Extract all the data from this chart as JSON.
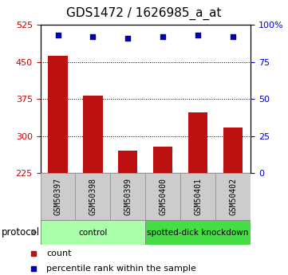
{
  "title": "GDS1472 / 1626985_a_at",
  "samples": [
    "GSM50397",
    "GSM50398",
    "GSM50399",
    "GSM50400",
    "GSM50401",
    "GSM50402"
  ],
  "counts": [
    462,
    382,
    270,
    278,
    348,
    318
  ],
  "percentile_ranks": [
    93,
    92,
    91,
    92,
    93,
    92
  ],
  "ylim_left": [
    225,
    525
  ],
  "ylim_right": [
    0,
    100
  ],
  "yticks_left": [
    225,
    300,
    375,
    450,
    525
  ],
  "yticks_right": [
    0,
    25,
    50,
    75,
    100
  ],
  "ytick_right_labels": [
    "0",
    "25",
    "50",
    "75",
    "100%"
  ],
  "bar_color": "#bb1111",
  "dot_color": "#0000bb",
  "bar_bottom": 225,
  "groups": [
    {
      "label": "control",
      "start": 0,
      "end": 3,
      "color": "#aaffaa"
    },
    {
      "label": "spotted-dick knockdown",
      "start": 3,
      "end": 6,
      "color": "#44dd44"
    }
  ],
  "legend_items": [
    {
      "label": "count",
      "color": "#bb1111"
    },
    {
      "label": "percentile rank within the sample",
      "color": "#0000bb"
    }
  ],
  "protocol_label": "protocol",
  "tick_label_color_left": "#cc0000",
  "tick_label_color_right": "#0000cc",
  "bg_color": "#ffffff",
  "sample_box_color": "#cccccc",
  "title_fontsize": 11,
  "tick_fontsize": 8,
  "sample_fontsize": 7,
  "legend_fontsize": 8
}
